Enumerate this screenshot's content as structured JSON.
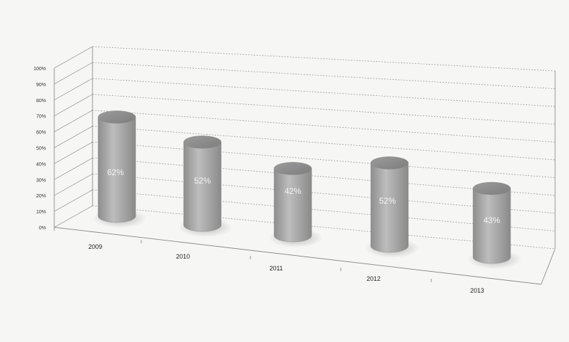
{
  "chart_data": {
    "type": "bar",
    "style": "3d-cylinder",
    "categories": [
      "2009",
      "2010",
      "2011",
      "2012",
      "2013"
    ],
    "values": [
      62,
      52,
      42,
      52,
      43
    ],
    "data_labels": [
      "62%",
      "52%",
      "42%",
      "52%",
      "43%"
    ],
    "ylim": [
      0,
      100
    ],
    "y_ticks": [
      "0%",
      "10%",
      "20%",
      "30%",
      "40%",
      "50%",
      "60%",
      "70%",
      "80%",
      "90%",
      "100%"
    ],
    "grid": true,
    "legend": "none",
    "colors": {
      "bar": "#a8a8a8",
      "grid": "#9a9a9a",
      "label": "#f4f4f4",
      "background": "#f6f6f4"
    }
  }
}
